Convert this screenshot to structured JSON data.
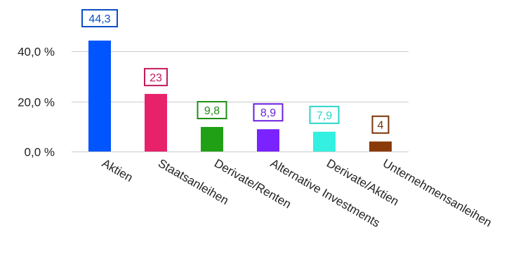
{
  "chart_data": {
    "type": "bar",
    "categories": [
      "Aktien",
      "Staatsanleihen",
      "Derivate/Renten",
      "Alternative Investments",
      "Derivate/Aktien",
      "Unternehmensanleihen"
    ],
    "values": [
      44.3,
      23,
      9.8,
      8.9,
      7.9,
      4
    ],
    "data_labels": [
      "44,3",
      "23",
      "9,8",
      "8,9",
      "7,9",
      "4"
    ],
    "colors": [
      "#0055ff",
      "#e8216b",
      "#1fa015",
      "#7a22ff",
      "#33f0e0",
      "#8a3a08"
    ],
    "label_colors": [
      "#0a4fc4",
      "#c21a5c",
      "#1e8f16",
      "#6a1fe0",
      "#2ad6c6",
      "#7a3308"
    ],
    "y_ticks": [
      {
        "value": 0,
        "label": "0,0 %"
      },
      {
        "value": 20,
        "label": "20,0 %"
      },
      {
        "value": 40,
        "label": "40,0 %"
      }
    ],
    "ylim": [
      0,
      50
    ],
    "grid": true,
    "title": "",
    "xlabel": "",
    "ylabel": ""
  }
}
